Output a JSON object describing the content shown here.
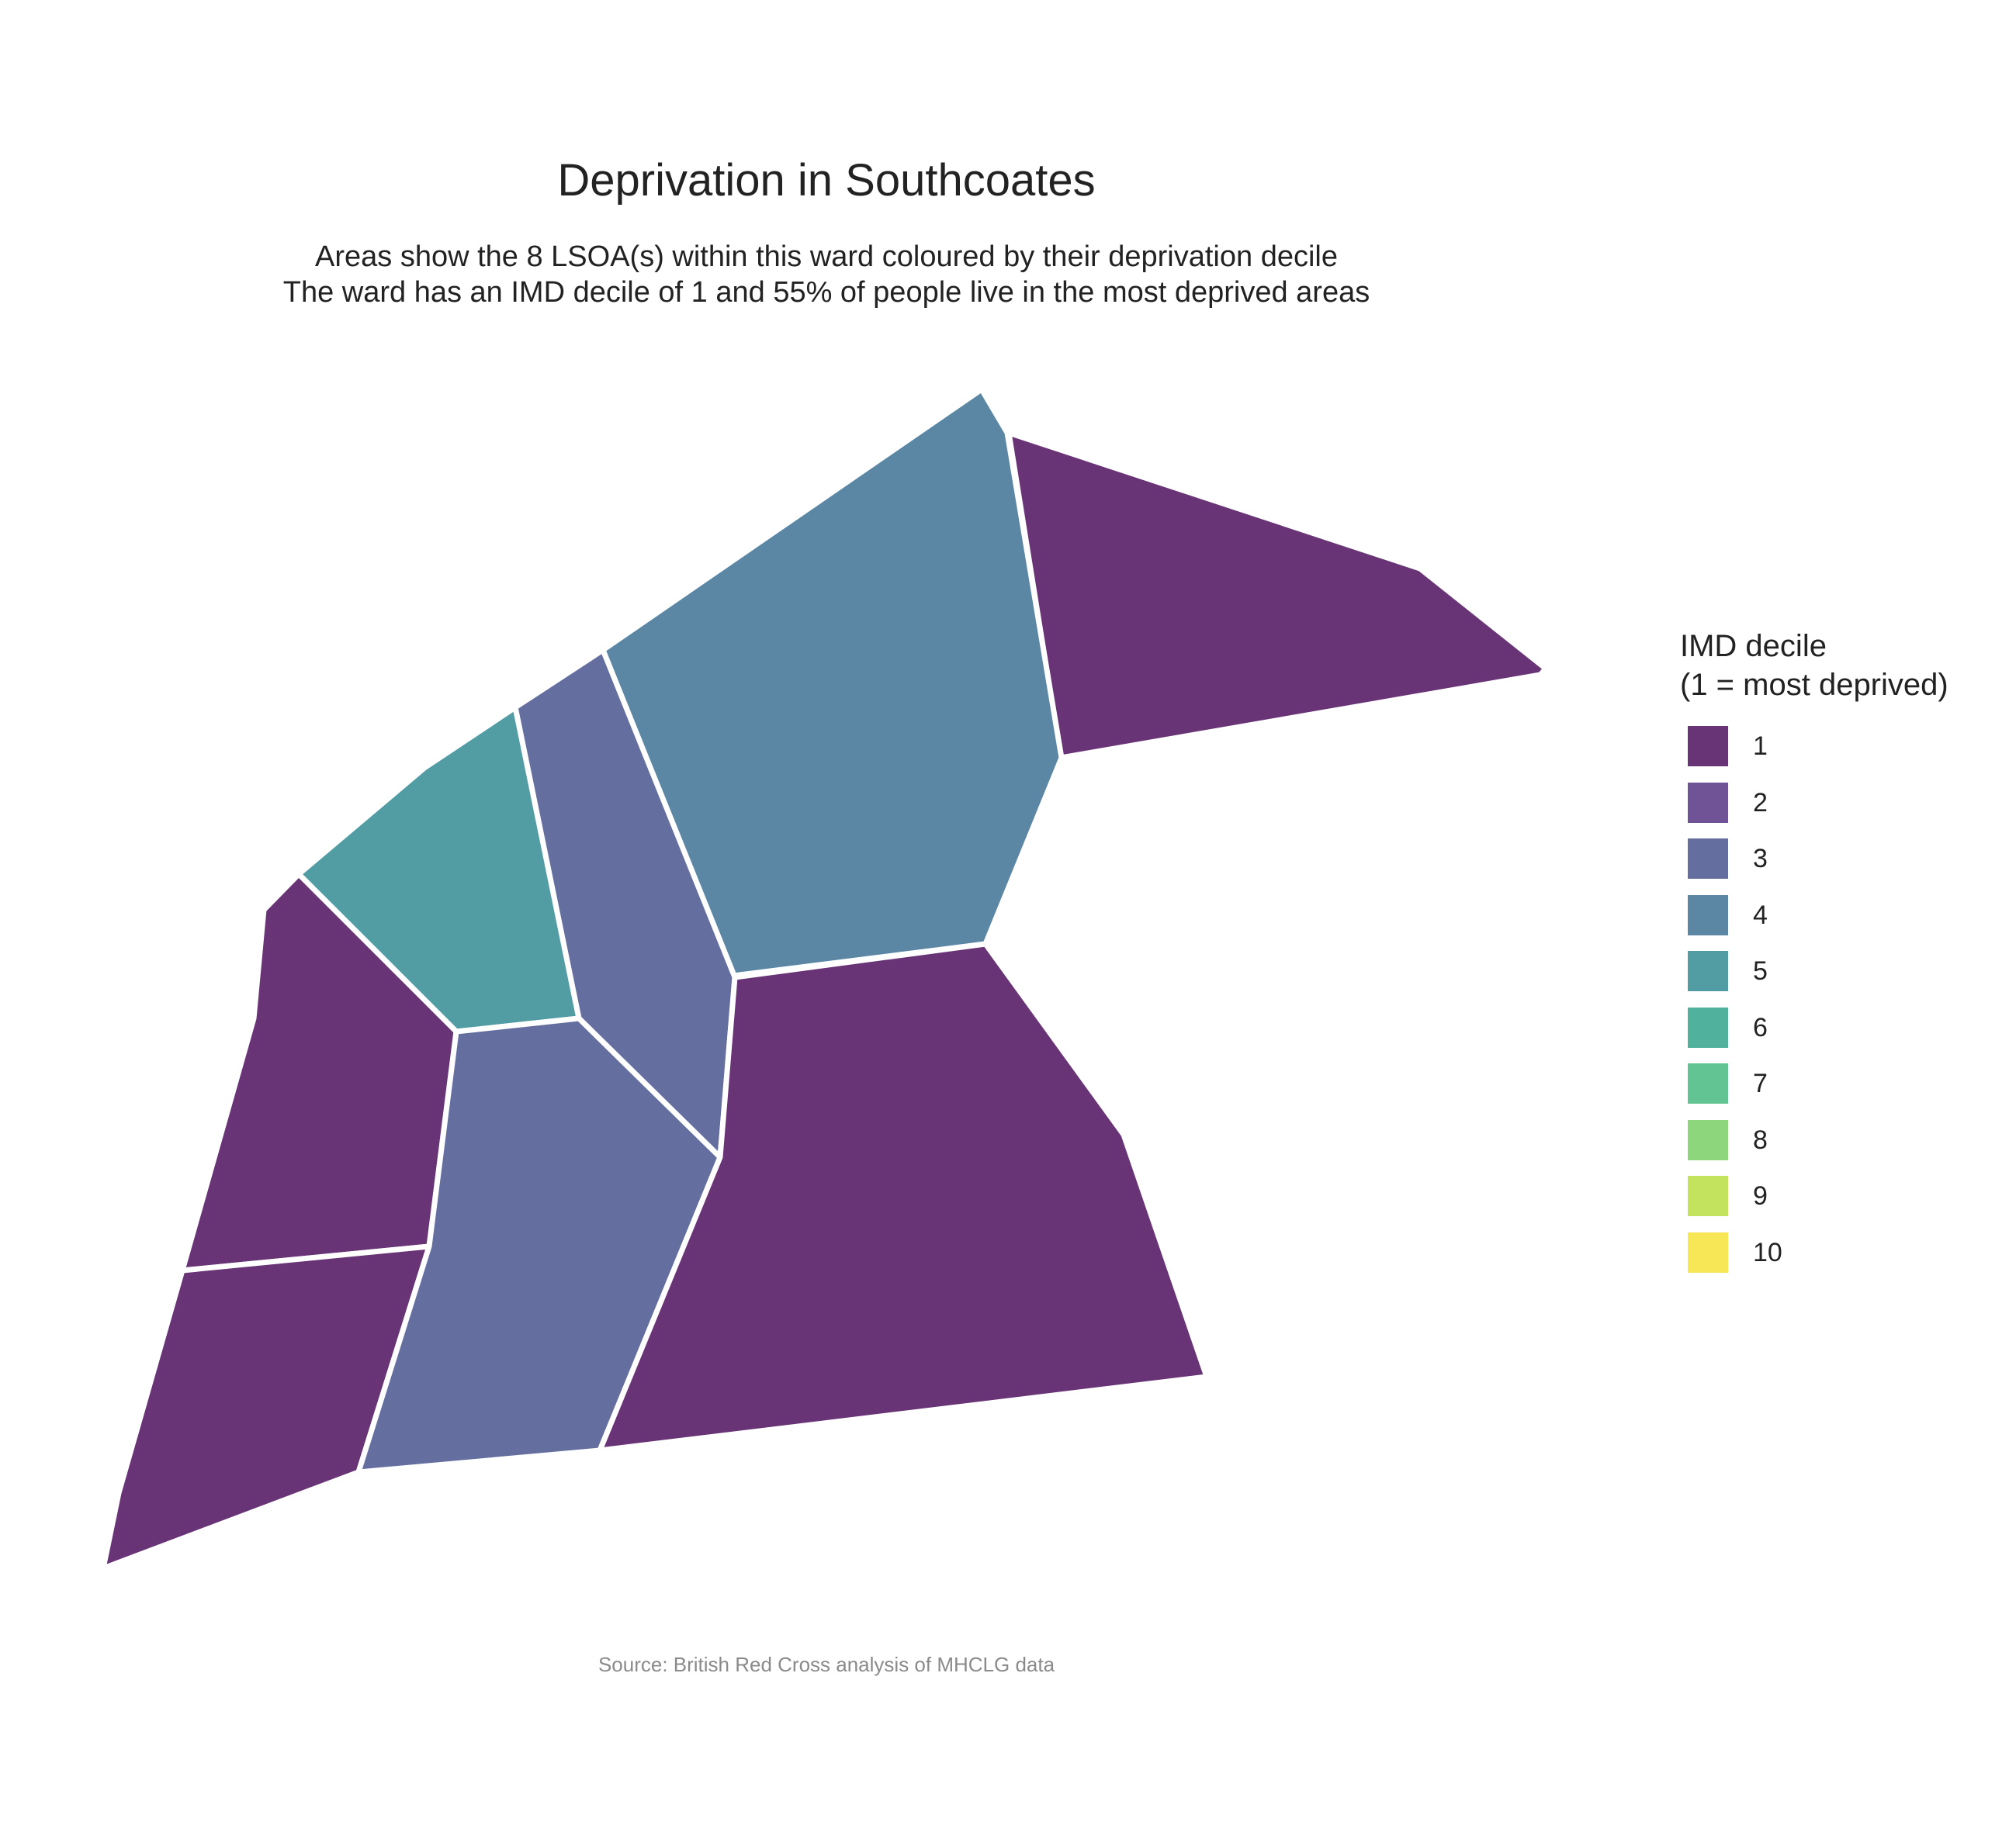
{
  "title": "Deprivation in Southcoates",
  "subtitle": {
    "line1": "Areas show the 8 LSOA(s) within this ward coloured by their deprivation decile",
    "line2": "The ward has an IMD decile of 1 and 55% of people live in the most deprived areas"
  },
  "caption": "Source: British Red Cross analysis of MHCLG data",
  "legend": {
    "title_line1": "IMD decile",
    "title_line2": "(1 = most deprived)",
    "items": [
      {
        "label": "1",
        "color": "#683476"
      },
      {
        "label": "2",
        "color": "#6f5396"
      },
      {
        "label": "3",
        "color": "#646f9f"
      },
      {
        "label": "4",
        "color": "#5b87a5"
      },
      {
        "label": "5",
        "color": "#529ca4"
      },
      {
        "label": "6",
        "color": "#50b19d"
      },
      {
        "label": "7",
        "color": "#62c493"
      },
      {
        "label": "8",
        "color": "#8ed67c"
      },
      {
        "label": "9",
        "color": "#c3e25d"
      },
      {
        "label": "10",
        "color": "#f7e757"
      }
    ]
  },
  "areas": [
    {
      "name": "lsoa-northeast",
      "decile": 1
    },
    {
      "name": "lsoa-north-central",
      "decile": 4
    },
    {
      "name": "lsoa-central-strip",
      "decile": 3
    },
    {
      "name": "lsoa-west-central",
      "decile": 5
    },
    {
      "name": "lsoa-west",
      "decile": 1
    },
    {
      "name": "lsoa-southwest",
      "decile": 1
    },
    {
      "name": "lsoa-south-central",
      "decile": 3
    },
    {
      "name": "lsoa-southeast",
      "decile": 1
    }
  ]
}
